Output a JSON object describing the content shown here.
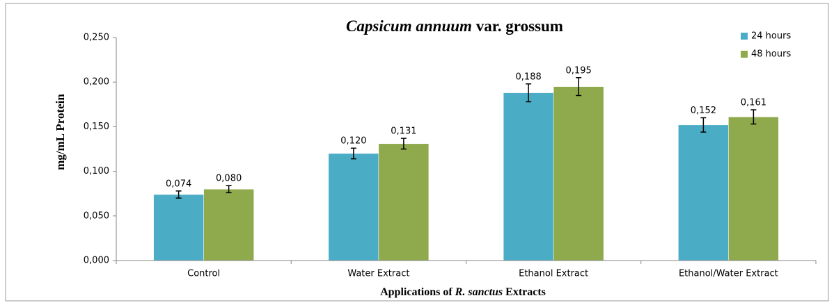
{
  "chart_data": {
    "type": "bar",
    "title": [
      "Capsicum annuum",
      "var. grossum"
    ],
    "x_label": [
      "Applications of ",
      "R. sanctus",
      " Extracts"
    ],
    "y_label": "mg/mL Protein",
    "categories": [
      "Control",
      "Water Extract",
      "Ethanol Extract",
      "Ethanol/Water Extract"
    ],
    "series": [
      {
        "name": "24 hours",
        "color": "#4bacc6",
        "values": [
          0.074,
          0.12,
          0.188,
          0.152
        ],
        "value_labels": [
          "0,074",
          "0,120",
          "0,188",
          "0,152"
        ],
        "errors": [
          0.004,
          0.006,
          0.01,
          0.008
        ]
      },
      {
        "name": "48 hours",
        "color": "#8faa4d",
        "values": [
          0.08,
          0.131,
          0.195,
          0.161
        ],
        "value_labels": [
          "0,080",
          "0,131",
          "0,195",
          "0,161"
        ],
        "errors": [
          0.004,
          0.006,
          0.01,
          0.008
        ]
      }
    ],
    "ylim": [
      0,
      0.25
    ],
    "yticks": [
      {
        "value": 0,
        "label": "0,000"
      },
      {
        "value": 0.05,
        "label": "0,050"
      },
      {
        "value": 0.1,
        "label": "0,100"
      },
      {
        "value": 0.15,
        "label": "0,150"
      },
      {
        "value": 0.2,
        "label": "0,200"
      },
      {
        "value": 0.25,
        "label": "0,250"
      }
    ],
    "grid": false,
    "legend": "top-right"
  }
}
